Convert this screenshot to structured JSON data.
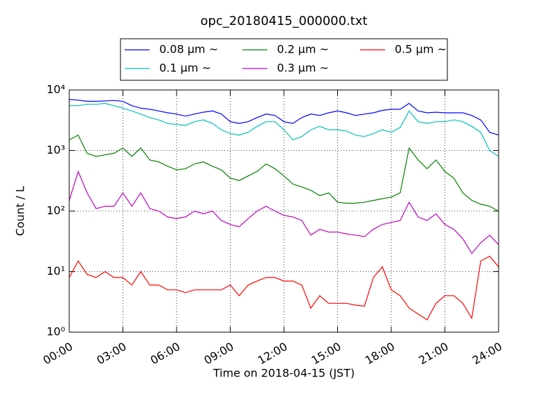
{
  "chart_data": {
    "type": "line",
    "title": "opc_20180415_000000.txt",
    "xlabel": "Time on 2018-04-15 (JST)",
    "ylabel": "Count / L",
    "log_scale": true,
    "grid": true,
    "legend": "top",
    "x": [
      "00:00",
      "00:30",
      "01:00",
      "01:30",
      "02:00",
      "02:30",
      "03:00",
      "03:30",
      "04:00",
      "04:30",
      "05:00",
      "05:30",
      "06:00",
      "06:30",
      "07:00",
      "07:30",
      "08:00",
      "08:30",
      "09:00",
      "09:30",
      "10:00",
      "10:30",
      "11:00",
      "11:30",
      "12:00",
      "12:30",
      "13:00",
      "13:30",
      "14:00",
      "14:30",
      "15:00",
      "15:30",
      "16:00",
      "16:30",
      "17:00",
      "17:30",
      "18:00",
      "18:30",
      "19:00",
      "19:30",
      "20:00",
      "20:30",
      "21:00",
      "21:30",
      "22:00",
      "22:30",
      "23:00",
      "23:30",
      "24:00"
    ],
    "xlim": [
      "00:00",
      "24:00"
    ],
    "xticks": [
      "00:00",
      "03:00",
      "06:00",
      "09:00",
      "12:00",
      "15:00",
      "18:00",
      "21:00",
      "24:00"
    ],
    "ylim": [
      1,
      10000
    ],
    "yticks": [
      {
        "value": 1,
        "label": "10⁰"
      },
      {
        "value": 10,
        "label": "10¹"
      },
      {
        "value": 100,
        "label": "10²"
      },
      {
        "value": 1000,
        "label": "10³"
      },
      {
        "value": 10000,
        "label": "10⁴"
      }
    ],
    "series": [
      {
        "name": "0.08 μm ~",
        "color": "#0000ff",
        "values": [
          7000,
          6800,
          6500,
          6500,
          6600,
          6700,
          6500,
          5500,
          5000,
          4800,
          4500,
          4200,
          4000,
          3700,
          4000,
          4300,
          4500,
          4000,
          3000,
          2800,
          3000,
          3500,
          4000,
          3800,
          3000,
          2800,
          3500,
          4000,
          3800,
          4200,
          4500,
          4200,
          3800,
          4000,
          4200,
          4600,
          4800,
          4800,
          6000,
          4500,
          4200,
          4300,
          4200,
          4200,
          4200,
          3800,
          3200,
          2000,
          1800
        ]
      },
      {
        "name": "0.1 μm ~",
        "color": "#00bfbf",
        "values": [
          5500,
          5500,
          5800,
          5800,
          6000,
          5500,
          5000,
          4500,
          4000,
          3500,
          3200,
          2800,
          2700,
          2600,
          3000,
          3200,
          2800,
          2200,
          1900,
          1800,
          2000,
          2500,
          3000,
          3000,
          2200,
          1500,
          1700,
          2200,
          2500,
          2200,
          2200,
          2100,
          1800,
          1700,
          1900,
          2200,
          2000,
          2400,
          4500,
          3000,
          2800,
          3000,
          3000,
          3200,
          3000,
          2500,
          2000,
          1000,
          800
        ]
      },
      {
        "name": "0.2 μm ~",
        "color": "#008000",
        "values": [
          1500,
          1800,
          900,
          800,
          850,
          900,
          1100,
          800,
          1100,
          700,
          650,
          550,
          480,
          500,
          600,
          650,
          550,
          480,
          350,
          320,
          380,
          450,
          600,
          500,
          380,
          280,
          250,
          220,
          180,
          200,
          140,
          135,
          135,
          140,
          150,
          160,
          170,
          200,
          1100,
          700,
          500,
          700,
          450,
          350,
          200,
          150,
          130,
          120,
          100
        ]
      },
      {
        "name": "0.3 μm ~",
        "color": "#bf00bf",
        "values": [
          150,
          450,
          200,
          110,
          120,
          120,
          200,
          120,
          200,
          110,
          100,
          80,
          75,
          80,
          100,
          90,
          100,
          70,
          60,
          55,
          75,
          100,
          120,
          100,
          85,
          80,
          70,
          40,
          50,
          45,
          45,
          42,
          40,
          38,
          50,
          60,
          65,
          70,
          140,
          80,
          70,
          90,
          60,
          50,
          35,
          20,
          30,
          40,
          28
        ]
      },
      {
        "name": "0.5 μm ~",
        "color": "#ff0000",
        "values": [
          8,
          15,
          9,
          8,
          10,
          8,
          8,
          6,
          10,
          6,
          6,
          5,
          5,
          4.5,
          5,
          5,
          5,
          5,
          6,
          4,
          6,
          7,
          8,
          8,
          7,
          7,
          6,
          2.5,
          4,
          3,
          3,
          3,
          2.8,
          2.7,
          8,
          12,
          5,
          4,
          2.5,
          2,
          1.6,
          3,
          4,
          4,
          3,
          1.7,
          15,
          18,
          12
        ]
      }
    ]
  }
}
